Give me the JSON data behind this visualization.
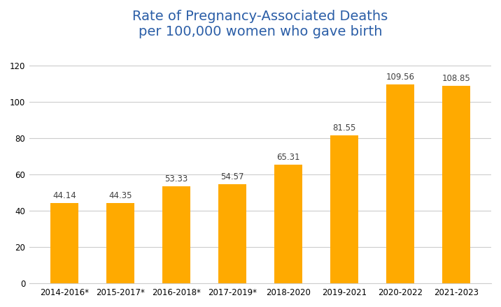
{
  "title_line1": "Rate of Pregnancy-Associated Deaths",
  "title_line2": "per 100,000 women who gave birth",
  "title_color": "#2B5EA7",
  "categories": [
    "2014-2016*",
    "2015-2017*",
    "2016-2018*",
    "2017-2019*",
    "2018-2020",
    "2019-2021",
    "2020-2022",
    "2021-2023"
  ],
  "values": [
    44.14,
    44.35,
    53.33,
    54.57,
    65.31,
    81.55,
    109.56,
    108.85
  ],
  "bar_color": "#FFAA00",
  "label_color": "#404040",
  "label_fontsize": 8.5,
  "ylim": [
    0,
    130
  ],
  "yticks": [
    0,
    20,
    40,
    60,
    80,
    100,
    120
  ],
  "grid_color": "#CCCCCC",
  "background_color": "#FFFFFF",
  "title_fontsize": 14,
  "tick_label_fontsize": 8.5,
  "bar_width": 0.5
}
